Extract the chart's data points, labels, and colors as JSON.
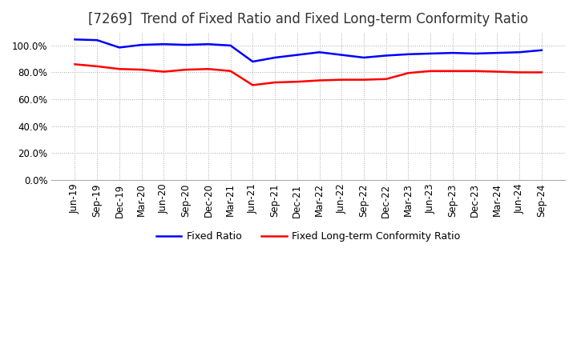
{
  "title": "[7269]  Trend of Fixed Ratio and Fixed Long-term Conformity Ratio",
  "x_labels": [
    "Jun-19",
    "Sep-19",
    "Dec-19",
    "Mar-20",
    "Jun-20",
    "Sep-20",
    "Dec-20",
    "Mar-21",
    "Jun-21",
    "Sep-21",
    "Dec-21",
    "Mar-22",
    "Jun-22",
    "Sep-22",
    "Dec-22",
    "Mar-23",
    "Jun-23",
    "Sep-23",
    "Dec-23",
    "Mar-24",
    "Jun-24",
    "Sep-24"
  ],
  "fixed_ratio": [
    104.5,
    104.0,
    98.5,
    100.5,
    101.0,
    100.5,
    101.0,
    100.0,
    88.0,
    91.0,
    93.0,
    95.0,
    93.0,
    91.0,
    92.5,
    93.5,
    94.0,
    94.5,
    94.0,
    94.5,
    95.0,
    96.5
  ],
  "fixed_lt_ratio": [
    86.0,
    84.5,
    82.5,
    82.0,
    80.5,
    82.0,
    82.5,
    81.0,
    70.5,
    72.5,
    73.0,
    74.0,
    74.5,
    74.5,
    75.0,
    79.5,
    81.0,
    81.0,
    81.0,
    80.5,
    80.0,
    80.0
  ],
  "fixed_ratio_color": "#0000ff",
  "fixed_lt_ratio_color": "#ff0000",
  "ylim_min": 0,
  "ylim_max": 110,
  "yticks": [
    0.0,
    20.0,
    40.0,
    60.0,
    80.0,
    100.0
  ],
  "background_color": "#ffffff",
  "grid_color": "#aaaaaa",
  "legend_fixed_ratio": "Fixed Ratio",
  "legend_fixed_lt_ratio": "Fixed Long-term Conformity Ratio",
  "title_fontsize": 12,
  "axis_fontsize": 8.5
}
